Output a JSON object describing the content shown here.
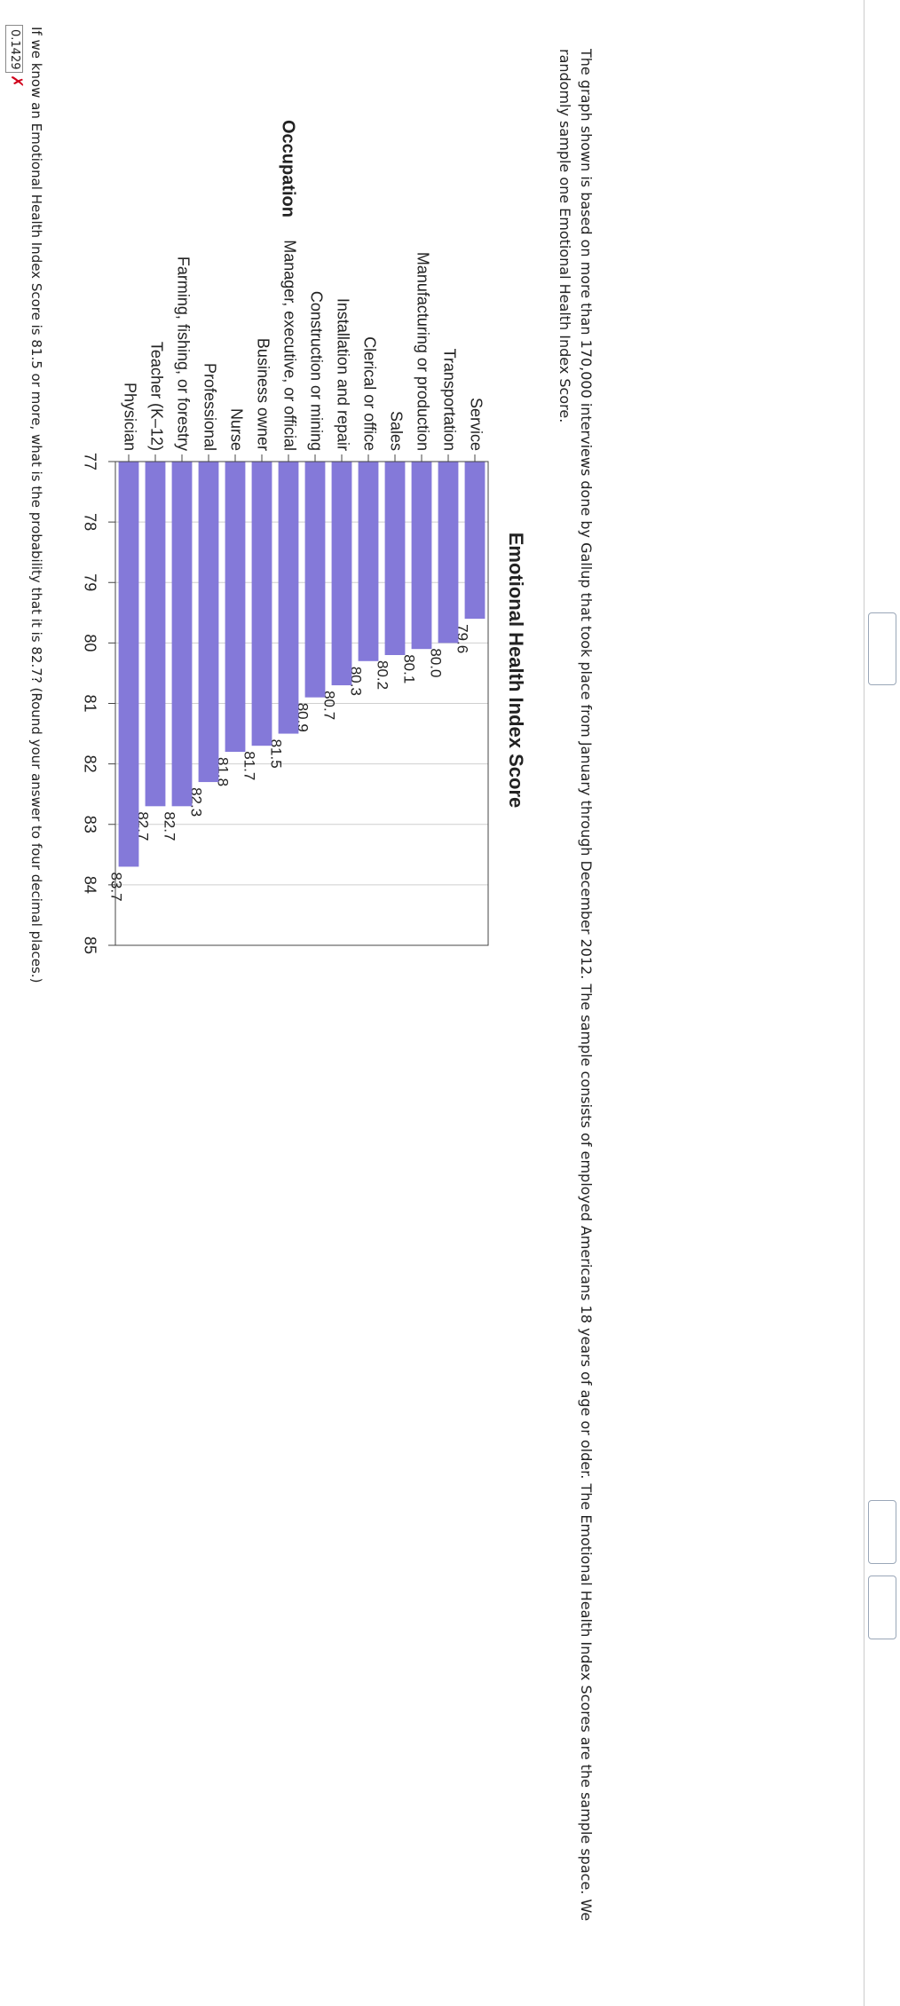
{
  "question": {
    "text": "The graph shown is based on more than 170,000 interviews done by Gallup that took place from January through December 2012. The sample consists of employed Americans 18 years of age or older. The Emotional Health Index Scores are the sample space. We randomly sample one Emotional Health Index Score.",
    "prompt": "If we know an Emotional Health Index Score is 81.5 or more, what is the probability that it is 82.7? (Round your answer to four decimal places.)"
  },
  "answer": {
    "value": "0.1429",
    "mark": "✗"
  },
  "chart_data": {
    "type": "bar",
    "orientation": "horizontal",
    "title": "Emotional Health Index Score",
    "y_label": "Occupation",
    "categories": [
      "Service",
      "Transportation",
      "Manufacturing or production",
      "Sales",
      "Clerical or office",
      "Installation and repair",
      "Construction or mining",
      "Manager, executive, or official",
      "Business owner",
      "Nurse",
      "Professional",
      "Farming, fishing, or forestry",
      "Teacher (K–12)",
      "Physician"
    ],
    "values": [
      79.6,
      80,
      80.1,
      80.2,
      80.3,
      80.7,
      80.9,
      81.5,
      81.7,
      81.8,
      82.3,
      82.7,
      82.7,
      83.7
    ],
    "value_labels": [
      "79.6",
      "80.0",
      "80.1",
      "80.2",
      "80.3",
      "80.7",
      "80.9",
      "81.5",
      "81.7",
      "81.8",
      "82.3",
      "82.7",
      "82.7",
      "83.7"
    ],
    "color": "#8479d9",
    "xlim": [
      77,
      85
    ],
    "xticks": [
      77,
      78,
      79,
      80,
      81,
      82,
      83,
      84,
      85
    ],
    "grid": true
  }
}
